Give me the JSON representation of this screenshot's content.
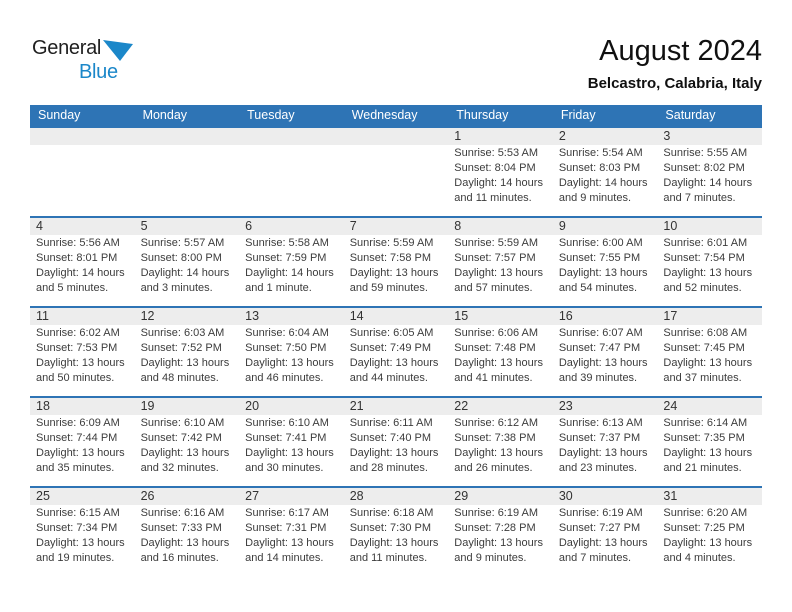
{
  "logo": {
    "word1": "General",
    "word2": "Blue",
    "triangle_color": "#1b87c9"
  },
  "header": {
    "title": "August 2024",
    "location": "Belcastro, Calabria, Italy"
  },
  "colors": {
    "accent_blue": "#2e74b5",
    "strip_gray": "#ededed",
    "logo_blue": "#1b87c9"
  },
  "weekdays": [
    "Sunday",
    "Monday",
    "Tuesday",
    "Wednesday",
    "Thursday",
    "Friday",
    "Saturday"
  ],
  "weeks": [
    [
      {
        "day": ""
      },
      {
        "day": ""
      },
      {
        "day": ""
      },
      {
        "day": ""
      },
      {
        "day": "1",
        "sunrise": "Sunrise: 5:53 AM",
        "sunset": "Sunset: 8:04 PM",
        "daylight": "Daylight: 14 hours and 11 minutes."
      },
      {
        "day": "2",
        "sunrise": "Sunrise: 5:54 AM",
        "sunset": "Sunset: 8:03 PM",
        "daylight": "Daylight: 14 hours and 9 minutes."
      },
      {
        "day": "3",
        "sunrise": "Sunrise: 5:55 AM",
        "sunset": "Sunset: 8:02 PM",
        "daylight": "Daylight: 14 hours and 7 minutes."
      }
    ],
    [
      {
        "day": "4",
        "sunrise": "Sunrise: 5:56 AM",
        "sunset": "Sunset: 8:01 PM",
        "daylight": "Daylight: 14 hours and 5 minutes."
      },
      {
        "day": "5",
        "sunrise": "Sunrise: 5:57 AM",
        "sunset": "Sunset: 8:00 PM",
        "daylight": "Daylight: 14 hours and 3 minutes."
      },
      {
        "day": "6",
        "sunrise": "Sunrise: 5:58 AM",
        "sunset": "Sunset: 7:59 PM",
        "daylight": "Daylight: 14 hours and 1 minute."
      },
      {
        "day": "7",
        "sunrise": "Sunrise: 5:59 AM",
        "sunset": "Sunset: 7:58 PM",
        "daylight": "Daylight: 13 hours and 59 minutes."
      },
      {
        "day": "8",
        "sunrise": "Sunrise: 5:59 AM",
        "sunset": "Sunset: 7:57 PM",
        "daylight": "Daylight: 13 hours and 57 minutes."
      },
      {
        "day": "9",
        "sunrise": "Sunrise: 6:00 AM",
        "sunset": "Sunset: 7:55 PM",
        "daylight": "Daylight: 13 hours and 54 minutes."
      },
      {
        "day": "10",
        "sunrise": "Sunrise: 6:01 AM",
        "sunset": "Sunset: 7:54 PM",
        "daylight": "Daylight: 13 hours and 52 minutes."
      }
    ],
    [
      {
        "day": "11",
        "sunrise": "Sunrise: 6:02 AM",
        "sunset": "Sunset: 7:53 PM",
        "daylight": "Daylight: 13 hours and 50 minutes."
      },
      {
        "day": "12",
        "sunrise": "Sunrise: 6:03 AM",
        "sunset": "Sunset: 7:52 PM",
        "daylight": "Daylight: 13 hours and 48 minutes."
      },
      {
        "day": "13",
        "sunrise": "Sunrise: 6:04 AM",
        "sunset": "Sunset: 7:50 PM",
        "daylight": "Daylight: 13 hours and 46 minutes."
      },
      {
        "day": "14",
        "sunrise": "Sunrise: 6:05 AM",
        "sunset": "Sunset: 7:49 PM",
        "daylight": "Daylight: 13 hours and 44 minutes."
      },
      {
        "day": "15",
        "sunrise": "Sunrise: 6:06 AM",
        "sunset": "Sunset: 7:48 PM",
        "daylight": "Daylight: 13 hours and 41 minutes."
      },
      {
        "day": "16",
        "sunrise": "Sunrise: 6:07 AM",
        "sunset": "Sunset: 7:47 PM",
        "daylight": "Daylight: 13 hours and 39 minutes."
      },
      {
        "day": "17",
        "sunrise": "Sunrise: 6:08 AM",
        "sunset": "Sunset: 7:45 PM",
        "daylight": "Daylight: 13 hours and 37 minutes."
      }
    ],
    [
      {
        "day": "18",
        "sunrise": "Sunrise: 6:09 AM",
        "sunset": "Sunset: 7:44 PM",
        "daylight": "Daylight: 13 hours and 35 minutes."
      },
      {
        "day": "19",
        "sunrise": "Sunrise: 6:10 AM",
        "sunset": "Sunset: 7:42 PM",
        "daylight": "Daylight: 13 hours and 32 minutes."
      },
      {
        "day": "20",
        "sunrise": "Sunrise: 6:10 AM",
        "sunset": "Sunset: 7:41 PM",
        "daylight": "Daylight: 13 hours and 30 minutes."
      },
      {
        "day": "21",
        "sunrise": "Sunrise: 6:11 AM",
        "sunset": "Sunset: 7:40 PM",
        "daylight": "Daylight: 13 hours and 28 minutes."
      },
      {
        "day": "22",
        "sunrise": "Sunrise: 6:12 AM",
        "sunset": "Sunset: 7:38 PM",
        "daylight": "Daylight: 13 hours and 26 minutes."
      },
      {
        "day": "23",
        "sunrise": "Sunrise: 6:13 AM",
        "sunset": "Sunset: 7:37 PM",
        "daylight": "Daylight: 13 hours and 23 minutes."
      },
      {
        "day": "24",
        "sunrise": "Sunrise: 6:14 AM",
        "sunset": "Sunset: 7:35 PM",
        "daylight": "Daylight: 13 hours and 21 minutes."
      }
    ],
    [
      {
        "day": "25",
        "sunrise": "Sunrise: 6:15 AM",
        "sunset": "Sunset: 7:34 PM",
        "daylight": "Daylight: 13 hours and 19 minutes."
      },
      {
        "day": "26",
        "sunrise": "Sunrise: 6:16 AM",
        "sunset": "Sunset: 7:33 PM",
        "daylight": "Daylight: 13 hours and 16 minutes."
      },
      {
        "day": "27",
        "sunrise": "Sunrise: 6:17 AM",
        "sunset": "Sunset: 7:31 PM",
        "daylight": "Daylight: 13 hours and 14 minutes."
      },
      {
        "day": "28",
        "sunrise": "Sunrise: 6:18 AM",
        "sunset": "Sunset: 7:30 PM",
        "daylight": "Daylight: 13 hours and 11 minutes."
      },
      {
        "day": "29",
        "sunrise": "Sunrise: 6:19 AM",
        "sunset": "Sunset: 7:28 PM",
        "daylight": "Daylight: 13 hours and 9 minutes."
      },
      {
        "day": "30",
        "sunrise": "Sunrise: 6:19 AM",
        "sunset": "Sunset: 7:27 PM",
        "daylight": "Daylight: 13 hours and 7 minutes."
      },
      {
        "day": "31",
        "sunrise": "Sunrise: 6:20 AM",
        "sunset": "Sunset: 7:25 PM",
        "daylight": "Daylight: 13 hours and 4 minutes."
      }
    ]
  ]
}
